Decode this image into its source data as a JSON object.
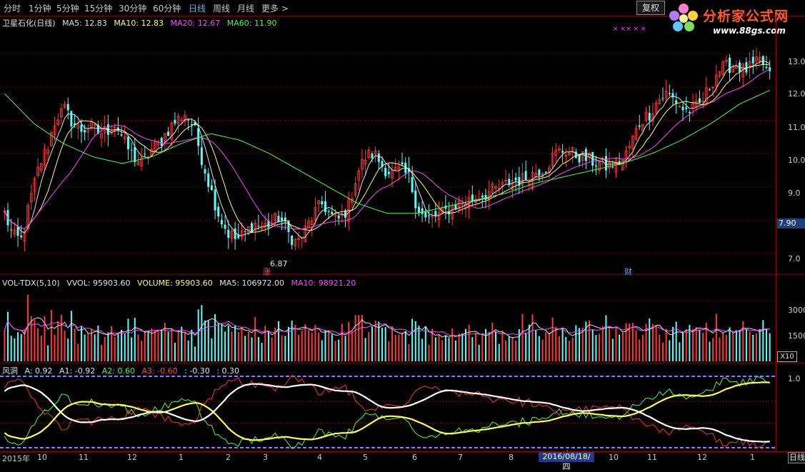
{
  "toolbar": {
    "periods": [
      {
        "label": "分时",
        "active": false
      },
      {
        "label": "1分钟",
        "active": false
      },
      {
        "label": "5分钟",
        "active": false
      },
      {
        "label": "15分钟",
        "active": false
      },
      {
        "label": "30分钟",
        "active": false
      },
      {
        "label": "60分钟",
        "active": false
      },
      {
        "label": "日线",
        "active": true
      },
      {
        "label": "周线",
        "active": false
      },
      {
        "label": "月线",
        "active": false
      },
      {
        "label": "更多 >",
        "active": false
      }
    ],
    "restore_button": "复权"
  },
  "logo": {
    "name": "分析家公式网",
    "url": "www.88gs.com"
  },
  "main_panel": {
    "title": "卫星石化(日线)",
    "indicators": [
      {
        "label": "MA5: 12.83",
        "color": "#e0e0e0"
      },
      {
        "label": "MA10: 12.83",
        "color": "#ffff66"
      },
      {
        "label": "MA20: 12.67",
        "color": "#ff44ff"
      },
      {
        "label": "MA60: 11.90",
        "color": "#44ff44"
      }
    ],
    "y_labels": [
      "13.0",
      "12.0",
      "11.0",
      "10.0",
      "9.0",
      "7.0"
    ],
    "current_price": "7.90",
    "low_marker": "6.87",
    "event_flags": [
      "涨",
      "财"
    ],
    "markers": "× ×× × ×"
  },
  "volume_panel": {
    "title": "VOL-TDX(5,10)",
    "indicators": [
      {
        "label": "VVOL: 95903.60",
        "color": "#e0e0e0"
      },
      {
        "label": "VOLUME: 95903.60",
        "color": "#ffff66"
      },
      {
        "label": "MA5: 106972.00",
        "color": "#e0e0e0"
      },
      {
        "label": "MA10: 98921.20",
        "color": "#ff44ff"
      }
    ],
    "y_labels": [
      "3000",
      "1500"
    ],
    "unit": "X10"
  },
  "wind_panel": {
    "title": "风洞",
    "indicators": [
      {
        "label": "A: 0.92",
        "color": "#e0e0e0"
      },
      {
        "label": "A1: -0.92",
        "color": "#e0e0e0"
      },
      {
        "label": "A2: 0.60",
        "color": "#44ff44"
      },
      {
        "label": "A3: -0.60",
        "color": "#ff4444"
      },
      {
        "label": ": -0.30",
        "color": "#e0e0e0"
      },
      {
        "label": ": 0.30",
        "color": "#e0e0e0"
      }
    ],
    "y_labels": [
      "1.0"
    ]
  },
  "x_axis": {
    "labels": [
      "2015年",
      "10",
      "11",
      "12",
      "1",
      "2",
      "3",
      "4",
      "5",
      "6",
      "7",
      "8",
      "10",
      "11",
      "12",
      "1"
    ],
    "selected_date": "2016/08/18/四",
    "period": "日线"
  },
  "colors": {
    "up": "#ff3838",
    "down": "#54ffff",
    "ma5": "#e0e0e0",
    "ma10": "#ffff66",
    "ma20": "#ff44ff",
    "ma60": "#44ff44",
    "axis": "#9a0000",
    "grid": "#8a0000"
  },
  "chart_data": {
    "type": "candlestick",
    "title": "卫星石化(日线)",
    "price_series_anchor": [
      8.2,
      7.5,
      7.4,
      8.6,
      9.6,
      10.2,
      11.1,
      11.3,
      10.9,
      10.7,
      10.8,
      10.6,
      10.7,
      10.9,
      10.3,
      9.9,
      9.7,
      10.1,
      10.3,
      10.7,
      11.0,
      11.2,
      10.8,
      9.8,
      8.9,
      8.1,
      7.6,
      7.4,
      7.6,
      7.9,
      7.8,
      7.9,
      8.1,
      7.6,
      7.3,
      7.7,
      8.2,
      8.5,
      8.1,
      8.0,
      8.4,
      9.4,
      9.9,
      10.0,
      9.6,
      9.4,
      9.5,
      9.3,
      8.4,
      8.0,
      8.1,
      8.2,
      8.4,
      8.5,
      8.6,
      8.7,
      8.8,
      8.9,
      9.0,
      9.2,
      9.2,
      9.3,
      9.5,
      9.6,
      10.0,
      10.1,
      10.0,
      9.9,
      9.8,
      9.7,
      9.6,
      9.7,
      9.8,
      10.4,
      11.0,
      11.2,
      11.6,
      11.8,
      11.6,
      11.3,
      11.3,
      11.5,
      12.0,
      12.5,
      12.6,
      12.7,
      12.5,
      12.6,
      12.8,
      12.3
    ],
    "price_ylim": [
      6.5,
      13.8
    ],
    "current_price": 7.9,
    "marked_low": 6.87,
    "ma60_anchor": [
      11.8,
      10.9,
      10.3,
      9.9,
      9.7,
      9.9,
      10.3,
      10.6,
      10.4,
      10.0,
      9.5,
      9.0,
      8.5,
      8.2,
      8.2,
      8.4,
      8.6,
      8.8,
      9.1,
      9.3,
      9.5,
      9.7,
      10.0,
      10.4,
      10.9,
      11.5,
      11.9
    ],
    "volume_ylim": [
      0,
      3600
    ],
    "volume_unit": "X10",
    "wind": {
      "A": 0.92,
      "A1": -0.92,
      "A2": 0.6,
      "A3": -0.6,
      "levels": [
        -0.3,
        0.3
      ],
      "ylim": [
        -1.05,
        1.05
      ]
    }
  }
}
